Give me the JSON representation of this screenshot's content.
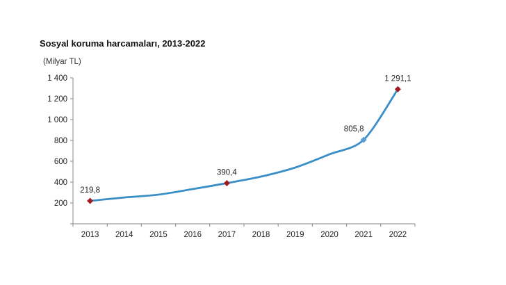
{
  "chart_data": {
    "type": "line",
    "title": "Sosyal koruma harcamaları, 2013-2022",
    "ylabel": "(Milyar TL)",
    "xlabel": "",
    "categories": [
      "2013",
      "2014",
      "2015",
      "2016",
      "2017",
      "2018",
      "2019",
      "2020",
      "2021",
      "2022"
    ],
    "values": [
      219.8,
      253,
      280,
      333,
      390.4,
      453,
      540,
      667,
      805.8,
      1291.1
    ],
    "data_labels": [
      {
        "category": "2013",
        "label": "219,8"
      },
      {
        "category": "2017",
        "label": "390,4"
      },
      {
        "category": "2021",
        "label": "805,8"
      },
      {
        "category": "2022",
        "label": "1 291,1"
      }
    ],
    "yticks": [
      0,
      200,
      400,
      600,
      800,
      1000,
      1200,
      1400
    ],
    "ytick_labels": [
      "",
      "200",
      "400",
      "600",
      "800",
      "1 000",
      "1 200",
      "1 400"
    ],
    "ylim": [
      0,
      1400
    ],
    "grid": false,
    "legend": "none",
    "colors": {
      "line": "#3a8fc8",
      "marker": "#a01c24",
      "marker_2021": "#5b9bd5"
    }
  }
}
